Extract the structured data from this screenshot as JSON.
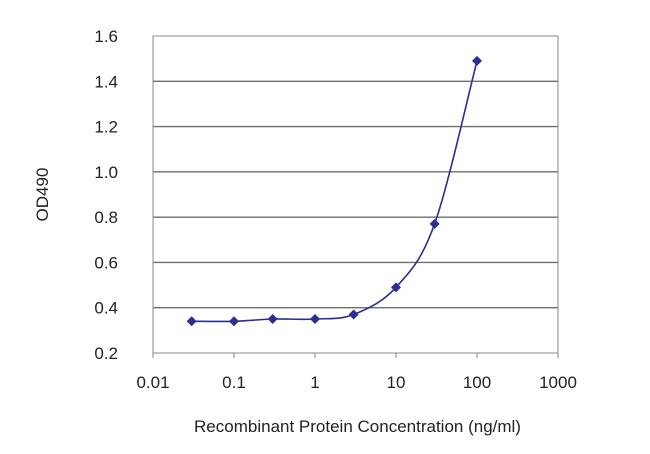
{
  "chart_data": {
    "type": "line",
    "title": "",
    "xlabel": "Recombinant Protein Concentration (ng/ml)",
    "ylabel": "OD490",
    "x_scale": "log",
    "xlim": [
      0.01,
      1000
    ],
    "ylim": [
      0.2,
      1.6
    ],
    "x_ticks": [
      "0.01",
      "0.1",
      "1",
      "10",
      "100",
      "1000"
    ],
    "y_ticks": [
      "0.2",
      "0.4",
      "0.6",
      "0.8",
      "1.0",
      "1.2",
      "1.4",
      "1.6"
    ],
    "grid": "horizontal",
    "series": [
      {
        "x": [
          0.03,
          0.1,
          0.3,
          1,
          3,
          10,
          30,
          100
        ],
        "y": [
          0.34,
          0.34,
          0.35,
          0.35,
          0.37,
          0.49,
          0.77,
          1.49
        ]
      }
    ],
    "colors": {
      "line": "#2b2f8f",
      "marker": "#2b2f8f",
      "grid": "#6e6e6e",
      "frame": "#8a8a8a"
    }
  }
}
